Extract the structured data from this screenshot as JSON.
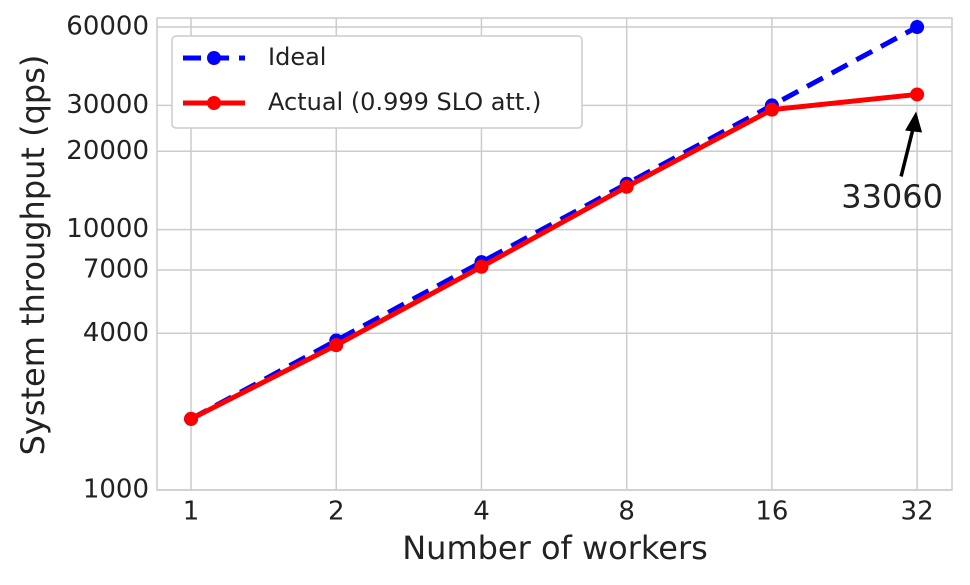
{
  "chart_data": {
    "type": "line",
    "x_label": "Number of workers",
    "y_label": "System throughput (qps)",
    "x": [
      1,
      2,
      4,
      8,
      16,
      32
    ],
    "xscale": "log",
    "yscale": "log",
    "xlim": [
      0.85,
      37.8
    ],
    "xticks": [
      1,
      2,
      4,
      8,
      16,
      32
    ],
    "ylim": [
      1000,
      65000
    ],
    "yticks": [
      1000,
      4000,
      7000,
      10000,
      20000,
      30000,
      60000
    ],
    "grid": true,
    "legend": "upper left",
    "series": [
      {
        "name": "Ideal",
        "color": "#0000ff",
        "dashed": true,
        "values": [
          1875,
          3750,
          7500,
          15000,
          30000,
          60000
        ]
      },
      {
        "name": "Actual (0.999 SLO att.)",
        "color": "#ff0000",
        "dashed": false,
        "values": [
          1875,
          3600,
          7200,
          14600,
          28900,
          33060
        ]
      }
    ]
  }
}
